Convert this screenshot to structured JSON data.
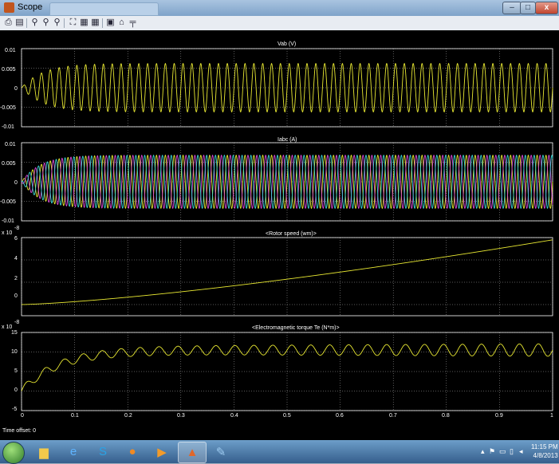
{
  "window": {
    "title": "Scope",
    "min_glyph": "–",
    "max_glyph": "□",
    "close_glyph": "x"
  },
  "toolbar": {
    "icons": [
      "print-icon",
      "properties-icon",
      "zoom-icon",
      "zoom-x-icon",
      "zoom-y-icon",
      "autoscale-icon",
      "save-axes-icon",
      "restore-axes-icon",
      "floating-scope-icon",
      "lock-icon",
      "signal-selection-icon"
    ]
  },
  "plots": [
    {
      "title": "Vab (V)",
      "exponent": "",
      "yticks": [
        "0.01",
        "0.005",
        "0",
        "-0.005",
        "-0.01"
      ],
      "ylim": [
        -0.01,
        0.01
      ]
    },
    {
      "title": "Iabc (A)",
      "exponent": "",
      "yticks": [
        "0.01",
        "0.005",
        "0",
        "-0.005",
        "-0.01"
      ],
      "ylim": [
        -0.01,
        0.01
      ]
    },
    {
      "title": "<Rotor speed (wm)>",
      "exponent": "-8",
      "exponent_prefix": "x 10",
      "yticks": [
        "6",
        "4",
        "2",
        "0"
      ],
      "ylim": [
        -1,
        6
      ]
    },
    {
      "title": "<Electromagnetic torque Te (N*m)>",
      "exponent": "-8",
      "exponent_prefix": "x 10",
      "yticks": [
        "15",
        "10",
        "5",
        "0",
        "-5"
      ],
      "ylim": [
        -5,
        15
      ]
    }
  ],
  "xticks": [
    "0",
    "0.1",
    "0.2",
    "0.3",
    "0.4",
    "0.5",
    "0.6",
    "0.7",
    "0.8",
    "0.9",
    "1"
  ],
  "xlim": [
    0,
    1
  ],
  "time_offset_label": "Time offset:",
  "time_offset_value": "0",
  "colors": {
    "yellow": "#e8e832",
    "magenta": "#d84ad8",
    "cyan": "#3ad4d4",
    "grid": "#ffffff",
    "background": "#000000"
  },
  "taskbar": {
    "apps": [
      "windows-explorer-icon",
      "internet-explorer-icon",
      "skype-icon",
      "firefox-icon",
      "media-player-icon",
      "matlab-icon",
      "paint-icon"
    ],
    "clock_time": "11:15 PM",
    "clock_date": "4/8/2013"
  }
}
